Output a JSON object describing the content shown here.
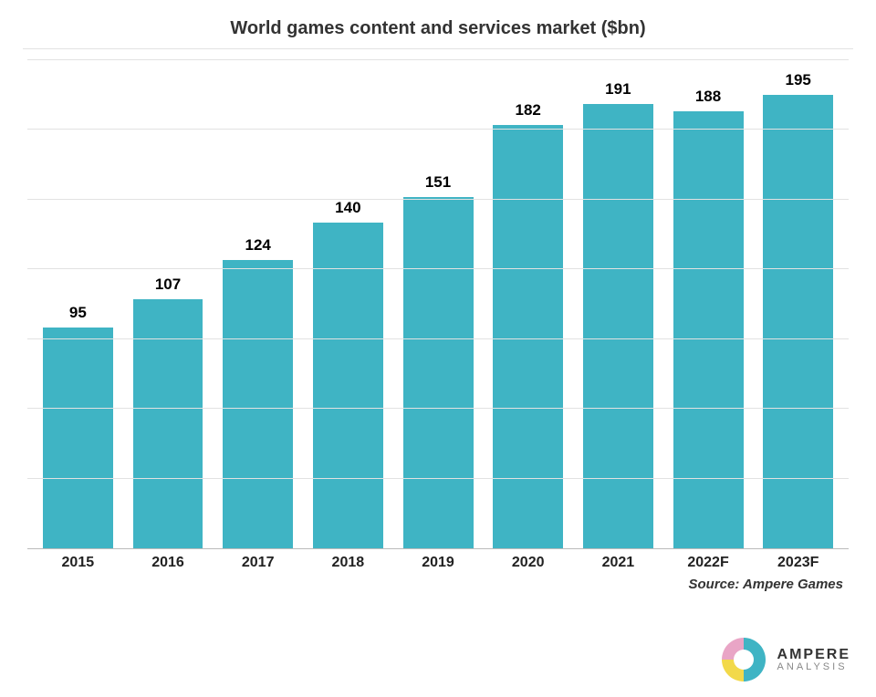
{
  "chart": {
    "type": "bar",
    "title": "World games content and services market ($bn)",
    "title_fontsize": 20,
    "categories": [
      "2015",
      "2016",
      "2017",
      "2018",
      "2019",
      "2020",
      "2021",
      "2022F",
      "2023F"
    ],
    "values": [
      95,
      107,
      124,
      140,
      151,
      182,
      191,
      188,
      195
    ],
    "bar_color": "#3fb4c4",
    "value_label_fontsize": 17,
    "x_label_fontsize": 16,
    "background_color": "#ffffff",
    "grid_color": "#e2e2e2",
    "title_rule_color": "#e2e2e2",
    "ylim": [
      0,
      210
    ],
    "ytick_step": 30,
    "bar_width": 0.78
  },
  "source": {
    "text": "Source: Ampere Games",
    "fontsize": 15
  },
  "logo": {
    "brand": "AMPERE",
    "sub": "ANALYSIS",
    "colors": {
      "teal": "#3fb4c4",
      "yellow": "#f2d94a",
      "pink": "#e9a5c6",
      "inner": "#ffffff"
    }
  }
}
